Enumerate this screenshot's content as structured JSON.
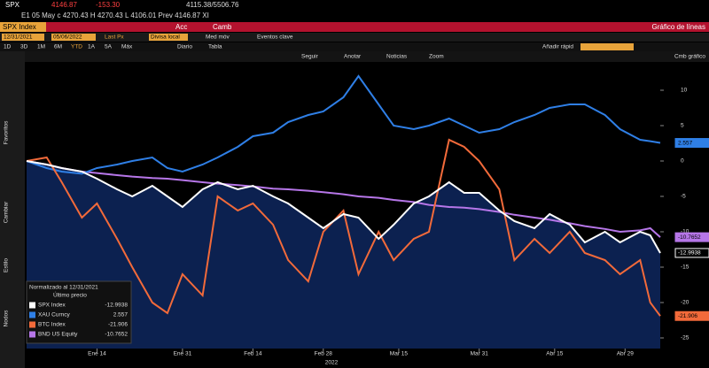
{
  "header": {
    "ticker": "SPX",
    "price": "4146.87",
    "change": "-153.30",
    "range": "4115.38/5506.76",
    "quote_line": "E1 05 May c 4270.43 H 4270.43 L 4106.01 Prev 4146.87 XI"
  },
  "toolbar": {
    "security": "SPX Index",
    "actions": "Acc",
    "currency": "Camb",
    "chart_name": "Gráfico de líneas",
    "start_date": "12/31/2021",
    "end_date": "05/06/2022",
    "field": "Last Px",
    "currency_mode": "Divisa local",
    "moving_avg": "Med móv",
    "events": "Eventos clave",
    "periods": [
      "1D",
      "3D",
      "1M",
      "6M",
      "YTD",
      "1A",
      "5A",
      "Máx"
    ],
    "frequency": "Diario",
    "table": "Tabla",
    "quick_add": "Añadir rápid",
    "chart_options": "Cmb gráfico"
  },
  "chart_tools": [
    "Seguir",
    "Anotar",
    "Noticias",
    "Zoom"
  ],
  "side_tabs": [
    "Favoritos",
    "Cambiar",
    "Estilo",
    "Nodos"
  ],
  "chart_data": {
    "type": "line",
    "legend_title": "Normalizado al 12/31/2021",
    "legend_subtitle": "Último precio",
    "xlabel": "2022",
    "x": [
      0,
      4,
      7,
      11,
      14,
      18,
      21,
      25,
      28,
      31,
      35,
      38,
      42,
      45,
      49,
      52,
      56,
      59,
      63,
      66,
      70,
      73,
      77,
      80,
      84,
      87,
      90,
      94,
      97,
      101,
      104,
      108,
      111,
      115,
      118,
      122,
      124,
      126
    ],
    "xlim": [
      0,
      126
    ],
    "xticks": [
      {
        "value": 14,
        "label": "Ene 14"
      },
      {
        "value": 31,
        "label": "Ene 31"
      },
      {
        "value": 45,
        "label": "Feb 14"
      },
      {
        "value": 59,
        "label": "Feb 28"
      },
      {
        "value": 74,
        "label": "Mar 15"
      },
      {
        "value": 90,
        "label": "Mar 31"
      },
      {
        "value": 105,
        "label": "Abr 15"
      },
      {
        "value": 119,
        "label": "Abr 29"
      }
    ],
    "ylim": [
      -26.5,
      14
    ],
    "yticks": [
      10,
      5,
      0,
      -5,
      -10,
      -15,
      -20,
      -25
    ],
    "grid": false,
    "series": [
      {
        "name": "SPX Index",
        "color": "#ffffff",
        "area": true,
        "values": [
          0,
          -0.5,
          -1,
          -1.5,
          -2.5,
          -4,
          -5,
          -3.5,
          -5,
          -6.5,
          -4,
          -3,
          -4,
          -3.5,
          -5,
          -6,
          -8,
          -9.5,
          -7.5,
          -8,
          -11,
          -9,
          -6,
          -5,
          -3,
          -4.5,
          -4.5,
          -7,
          -8.5,
          -9.5,
          -7.5,
          -9,
          -11.5,
          -10,
          -11.5,
          -10,
          -10.5,
          -12.9938
        ]
      },
      {
        "name": "XAU Curncy",
        "color": "#2f7fe6",
        "values": [
          0,
          -1,
          -1.5,
          -1.8,
          -1,
          -0.5,
          0,
          0.5,
          -1,
          -1.5,
          -0.5,
          0.5,
          2,
          3.5,
          4,
          5.5,
          6.5,
          7,
          9,
          12,
          8,
          5,
          4.5,
          5,
          6,
          5,
          4,
          4.5,
          5.5,
          6.5,
          7.5,
          8,
          8,
          6.5,
          4.5,
          3,
          2.8,
          2.557
        ]
      },
      {
        "name": "BTC Index",
        "color": "#f26a3a",
        "values": [
          0,
          0.5,
          -3,
          -8,
          -6,
          -11,
          -15,
          -20,
          -21.5,
          -16,
          -19,
          -5,
          -7,
          -6,
          -9,
          -14,
          -17,
          -10,
          -7,
          -16,
          -10,
          -14,
          -11,
          -10,
          3,
          2,
          0,
          -4,
          -14,
          -11,
          -13,
          -10,
          -13,
          -14,
          -16,
          -14,
          -20,
          -21.906
        ]
      },
      {
        "name": "BND US Equity",
        "color": "#b676e8",
        "values": [
          0,
          -0.5,
          -1,
          -1.5,
          -1.7,
          -2,
          -2.2,
          -2.4,
          -2.5,
          -2.7,
          -3,
          -3.2,
          -3.4,
          -3.6,
          -3.9,
          -4,
          -4.2,
          -4.4,
          -4.7,
          -5,
          -5.2,
          -5.5,
          -5.8,
          -6.2,
          -6.5,
          -6.6,
          -6.8,
          -7.2,
          -7.6,
          -8,
          -8.3,
          -8.8,
          -9.2,
          -9.6,
          -10,
          -9.8,
          -9.5,
          -10.7652
        ]
      }
    ]
  }
}
